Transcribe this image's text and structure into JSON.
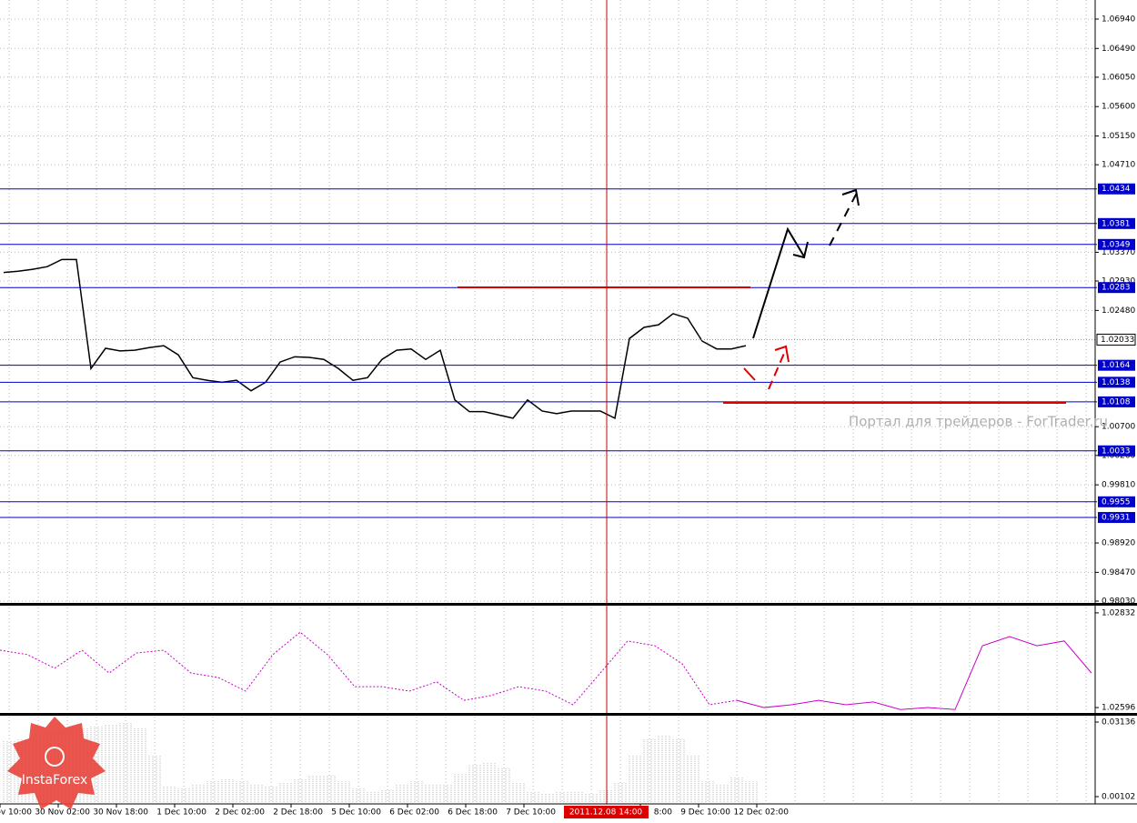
{
  "chart_data": [
    {
      "type": "line",
      "color": "#000000",
      "values": [
        1.0306,
        1.0308,
        1.0311,
        1.0315,
        1.0326,
        1.0326,
        1.0159,
        1.019,
        1.0186,
        1.0187,
        1.0191,
        1.0194,
        1.018,
        1.0145,
        1.0141,
        1.0138,
        1.0141,
        1.0125,
        1.0138,
        1.0169,
        1.0177,
        1.0176,
        1.0173,
        1.0159,
        1.0141,
        1.0145,
        1.0173,
        1.0187,
        1.0189,
        1.0173,
        1.0187,
        1.0111,
        1.0093,
        1.0093,
        1.0088,
        1.0083,
        1.0111,
        1.0094,
        1.009,
        1.0094,
        1.0094,
        1.0094,
        1.0083,
        1.0205,
        1.0222,
        1.0226,
        1.0243,
        1.0236,
        1.0201,
        1.0189,
        1.0189,
        1.0194
      ],
      "ylim": [
        0.98002,
        1.07232
      ],
      "yticks": [
        {
          "value": 1.0694,
          "label": "1.06940"
        },
        {
          "value": 1.0649,
          "label": "1.06490"
        },
        {
          "value": 1.0605,
          "label": "1.06050"
        },
        {
          "value": 1.056,
          "label": "1.05600"
        },
        {
          "value": 1.0515,
          "label": "1.05150"
        },
        {
          "value": 1.0471,
          "label": "1.04710"
        },
        {
          "value": 1.0337,
          "label": "1.03370"
        },
        {
          "value": 1.0293,
          "label": "1.02930"
        },
        {
          "value": 1.0248,
          "label": "1.02480"
        },
        {
          "value": 1.007,
          "label": "1.00700"
        },
        {
          "value": 1.0026,
          "label": "1.00260"
        },
        {
          "value": 0.9981,
          "label": "0.99810"
        },
        {
          "value": 0.9892,
          "label": "0.98920"
        },
        {
          "value": 0.9847,
          "label": "0.98470"
        },
        {
          "value": 0.9803,
          "label": "0.98030"
        }
      ],
      "levels": [
        1.0434,
        1.0381,
        1.0349,
        1.0283,
        1.0164,
        1.0138,
        1.0108,
        1.0033,
        0.9955,
        0.9931
      ],
      "level_color": "#0000cc",
      "current_price": 1.02033,
      "grid": true,
      "time_labels": [
        "ov 10:00",
        "30 Nov 02:00",
        "30 Nov 18:00",
        "1 Dec 10:00",
        "2 Dec 02:00",
        "2 Dec 18:00",
        "5 Dec 10:00",
        "6 Dec 02:00",
        "6 Dec 18:00",
        "7 Dec 10:00",
        null,
        "8:00",
        "9 Dec 10:00",
        "12 Dec 02:00"
      ],
      "crosshair_time": "2011.12.08 14:00",
      "watermark": "Портал для трейдеров - ForTrader.ru"
    },
    {
      "type": "line",
      "color": "#cc00cc",
      "values": [
        1.02739,
        1.02728,
        1.02694,
        1.02739,
        1.02682,
        1.02732,
        1.02739,
        1.02682,
        1.02671,
        1.02637,
        1.02728,
        1.02784,
        1.02728,
        1.02648,
        1.02648,
        1.02637,
        1.0266,
        1.02614,
        1.02626,
        1.02648,
        1.02637,
        1.02603,
        1.02682,
        1.02762,
        1.0275,
        1.02705,
        1.02603,
        1.02614,
        1.02596,
        1.02603,
        1.02614,
        1.02603,
        1.0261,
        1.02591,
        1.02596,
        1.02591,
        1.0275,
        1.02773,
        1.0275,
        1.02762,
        1.02682
      ],
      "ylim": [
        1.02578,
        1.0285
      ],
      "yticks": [
        1.02832,
        1.02596
      ]
    },
    {
      "type": "bar",
      "color": "#bbbbbb",
      "values": [
        0.0236,
        0.0247,
        0.0262,
        0.0273,
        0.0284,
        0.0291,
        0.0299,
        0.0306,
        0.031,
        0.0291,
        0.018,
        0.0051,
        0.0047,
        0.0062,
        0.0077,
        0.0084,
        0.0077,
        0.0062,
        0.0051,
        0.0069,
        0.0084,
        0.0099,
        0.0099,
        0.0077,
        0.0047,
        0.0032,
        0.004,
        0.0062,
        0.0077,
        0.0062,
        0.0062,
        0.0106,
        0.0143,
        0.0151,
        0.0125,
        0.0069,
        0.0032,
        0.0025,
        0.0032,
        0.0032,
        0.0025,
        0.004,
        0.0069,
        0.018,
        0.0247,
        0.0262,
        0.0247,
        0.018,
        0.0077,
        0.0062,
        0.0088,
        0.0077
      ],
      "ylim": [
        -0.00194,
        0.03432
      ],
      "yticks": [
        0.03136,
        0.00102
      ]
    }
  ],
  "logo": "InstaForex"
}
